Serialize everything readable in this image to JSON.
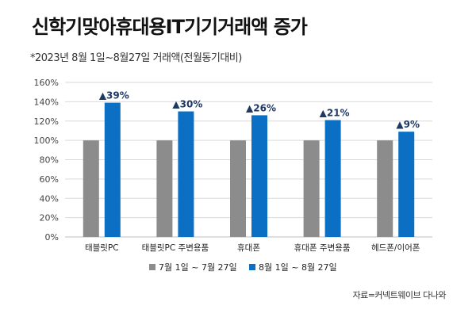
{
  "page": {
    "title": "신학기맞아휴대용IT기기거래액 증가",
    "subtitle": "*2023년 8월 1일~8월27일 거래액(전월동기대비)",
    "source": "자료=커넥트웨이브 다나와"
  },
  "colors": {
    "series_a": "#8c8c8c",
    "series_b": "#0b6fc4",
    "label": "#1f3864",
    "grid": "#d9d9d9"
  },
  "chart_data": {
    "type": "bar",
    "title": "신학기맞아휴대용IT기기거래액 증가",
    "ylim": [
      0,
      160
    ],
    "yticks": [
      0,
      20,
      40,
      60,
      80,
      100,
      120,
      140,
      160
    ],
    "ytick_labels": [
      "0%",
      "20%",
      "40%",
      "60%",
      "80%",
      "100%",
      "120%",
      "140%",
      "160%"
    ],
    "categories": [
      "태블릿PC",
      "태블릿PC 주변용품",
      "휴대폰",
      "휴대폰 주변용품",
      "헤드폰/이어폰"
    ],
    "series": [
      {
        "name": "7월 1일 ~ 7월 27일",
        "values": [
          100,
          100,
          100,
          100,
          100
        ]
      },
      {
        "name": "8월 1일 ~ 8월 27일",
        "values": [
          139,
          130,
          126,
          121,
          109
        ]
      }
    ],
    "annotations": [
      "▲39%",
      "▲30%",
      "▲26%",
      "▲21%",
      "▲9%"
    ],
    "grid": true,
    "legend": "bottom"
  }
}
